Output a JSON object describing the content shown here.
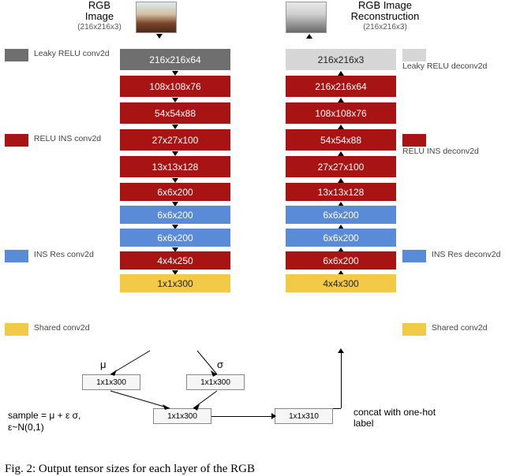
{
  "colors": {
    "gray": "#6f6f6f",
    "red": "#a81414",
    "blue": "#5a8bd6",
    "yellow": "#f3c948",
    "ltgray": "#d6d6d6",
    "text_dark": "#222222",
    "text_light": "#ffffff"
  },
  "top": {
    "left_title": "RGB",
    "left_title2": "Image",
    "left_dims": "(216x216x3)",
    "right_title": "RGB Image",
    "right_title2": "Reconstruction",
    "right_dims": "(216x216x3)"
  },
  "legend": {
    "l1": "Leaky RELU conv2d",
    "l2": "RELU INS conv2d",
    "l3": "INS Res conv2d",
    "l4": "Shared conv2d",
    "r1": "Leaky RELU deconv2d",
    "r2": "RELU INS deconv2d",
    "r3": "INS Res deconv2d",
    "r4": "Shared conv2d"
  },
  "encoder": [
    {
      "label": "216x216x64",
      "colorKey": "gray"
    },
    {
      "label": "108x108x76",
      "colorKey": "red"
    },
    {
      "label": "54x54x88",
      "colorKey": "red"
    },
    {
      "label": "27x27x100",
      "colorKey": "red"
    },
    {
      "label": "13x13x128",
      "colorKey": "red"
    },
    {
      "label": "6x6x200",
      "colorKey": "red"
    },
    {
      "label": "6x6x200",
      "colorKey": "blue"
    },
    {
      "label": "6x6x200",
      "colorKey": "blue"
    },
    {
      "label": "4x4x250",
      "colorKey": "red"
    },
    {
      "label": "1x1x300",
      "colorKey": "yellow",
      "dark": true
    }
  ],
  "decoder": [
    {
      "label": "216x216x3",
      "colorKey": "ltgray",
      "dark": true
    },
    {
      "label": "216x216x64",
      "colorKey": "red"
    },
    {
      "label": "108x108x76",
      "colorKey": "red"
    },
    {
      "label": "54x54x88",
      "colorKey": "red"
    },
    {
      "label": "27x27x100",
      "colorKey": "red"
    },
    {
      "label": "13x13x128",
      "colorKey": "red"
    },
    {
      "label": "6x6x200",
      "colorKey": "blue"
    },
    {
      "label": "6x6x200",
      "colorKey": "blue"
    },
    {
      "label": "6x6x200",
      "colorKey": "red"
    },
    {
      "label": "4x4x300",
      "colorKey": "yellow",
      "dark": true
    }
  ],
  "sampling": {
    "mu_label": "μ",
    "sigma_label": "σ",
    "mu_box": "1x1x300",
    "sigma_box": "1x1x300",
    "sample_box": "1x1x300",
    "concat_box": "1x1x310",
    "formula_l1": "sample = μ + ε σ,",
    "formula_l2": "ε~N(0,1)",
    "concat_l1": "concat with one-hot",
    "concat_l2": "label"
  },
  "caption": "Fig. 2: Output tensor sizes for each layer of the RGB"
}
